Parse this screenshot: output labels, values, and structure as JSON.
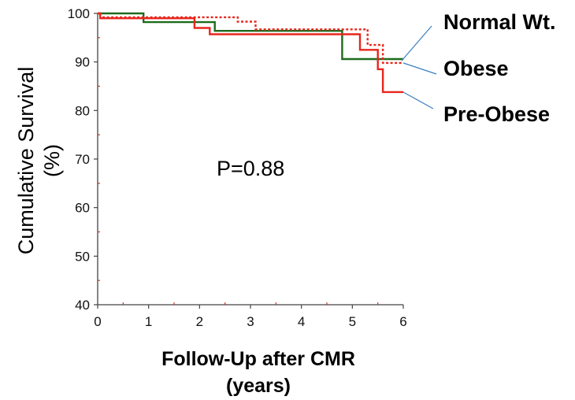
{
  "chart_data": {
    "type": "line",
    "step": true,
    "xlabel_line1": "Follow-Up after CMR",
    "xlabel_line2": "(years)",
    "ylabel_line1": "Cumulative Survival",
    "ylabel_line2": "(%)",
    "xlim": [
      0,
      6
    ],
    "ylim": [
      40,
      100
    ],
    "x_ticks": [
      "0",
      "1",
      "2",
      "3",
      "4",
      "5",
      "6"
    ],
    "y_ticks": [
      "40",
      "50",
      "60",
      "70",
      "80",
      "90",
      "100"
    ],
    "grid": false,
    "annotation": "P=0.88",
    "series": [
      {
        "name": "Normal Wt.",
        "color": "#1e6b1e",
        "style": "solid",
        "x": [
          0,
          0.9,
          0.9,
          2.3,
          2.3,
          4.8,
          4.8,
          6.0
        ],
        "y": [
          100,
          100,
          98.2,
          98.2,
          96.4,
          96.4,
          90.6,
          90.6
        ]
      },
      {
        "name": "Obese",
        "color": "#e8261c",
        "style": "dotted",
        "x": [
          0,
          0.05,
          0.05,
          2.75,
          2.75,
          3.1,
          3.1,
          5.3,
          5.3,
          5.6,
          5.6,
          6.0
        ],
        "y": [
          100,
          100,
          99.2,
          99.2,
          98.3,
          98.3,
          96.7,
          96.7,
          93.5,
          93.5,
          89.8,
          89.8
        ]
      },
      {
        "name": "Pre-Obese",
        "color": "#e8261c",
        "style": "solid",
        "x": [
          0,
          0.05,
          0.05,
          1.9,
          1.9,
          2.2,
          2.2,
          5.15,
          5.15,
          5.5,
          5.5,
          5.6,
          5.6,
          6.0
        ],
        "y": [
          100,
          100,
          99.0,
          99.0,
          97.0,
          97.0,
          95.7,
          95.7,
          92.5,
          92.5,
          88.5,
          88.5,
          83.8,
          83.8
        ]
      }
    ]
  }
}
